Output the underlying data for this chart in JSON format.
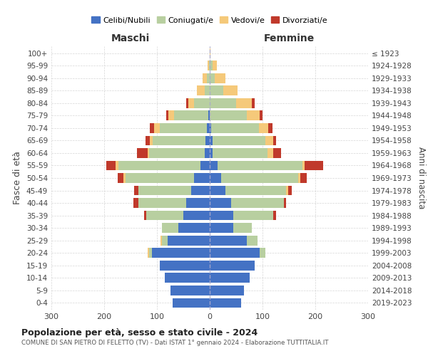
{
  "age_groups": [
    "0-4",
    "5-9",
    "10-14",
    "15-19",
    "20-24",
    "25-29",
    "30-34",
    "35-39",
    "40-44",
    "45-49",
    "50-54",
    "55-59",
    "60-64",
    "65-69",
    "70-74",
    "75-79",
    "80-84",
    "85-89",
    "90-94",
    "95-99",
    "100+"
  ],
  "birth_years": [
    "2019-2023",
    "2014-2018",
    "2009-2013",
    "2004-2008",
    "1999-2003",
    "1994-1998",
    "1989-1993",
    "1984-1988",
    "1979-1983",
    "1974-1978",
    "1969-1973",
    "1964-1968",
    "1959-1963",
    "1954-1958",
    "1949-1953",
    "1944-1948",
    "1939-1943",
    "1934-1938",
    "1929-1933",
    "1924-1928",
    "≤ 1923"
  ],
  "males": {
    "celibi": [
      70,
      75,
      85,
      95,
      110,
      80,
      60,
      50,
      45,
      35,
      30,
      18,
      10,
      8,
      5,
      3,
      0,
      0,
      0,
      0,
      0
    ],
    "coniugati": [
      0,
      0,
      0,
      0,
      5,
      10,
      30,
      70,
      90,
      100,
      130,
      155,
      105,
      100,
      90,
      65,
      30,
      10,
      5,
      2,
      0
    ],
    "vedovi": [
      0,
      0,
      0,
      0,
      3,
      3,
      0,
      0,
      0,
      0,
      3,
      5,
      3,
      5,
      10,
      10,
      10,
      15,
      8,
      2,
      0
    ],
    "divorziati": [
      0,
      0,
      0,
      0,
      0,
      0,
      0,
      5,
      10,
      8,
      12,
      18,
      20,
      8,
      8,
      5,
      5,
      0,
      0,
      0,
      0
    ]
  },
  "females": {
    "nubili": [
      60,
      65,
      75,
      85,
      95,
      70,
      45,
      45,
      40,
      30,
      22,
      15,
      5,
      5,
      3,
      0,
      0,
      0,
      0,
      0,
      0
    ],
    "coniugate": [
      0,
      0,
      0,
      0,
      10,
      20,
      35,
      75,
      100,
      115,
      145,
      160,
      105,
      100,
      90,
      70,
      50,
      25,
      10,
      5,
      0
    ],
    "vedove": [
      0,
      0,
      0,
      0,
      0,
      0,
      0,
      0,
      0,
      3,
      5,
      5,
      10,
      15,
      18,
      25,
      30,
      28,
      20,
      8,
      1
    ],
    "divorziate": [
      0,
      0,
      0,
      0,
      0,
      0,
      0,
      5,
      5,
      8,
      12,
      35,
      15,
      5,
      8,
      5,
      5,
      0,
      0,
      0,
      0
    ]
  },
  "colors": {
    "celibi": "#4472c4",
    "coniugati": "#b8cfa0",
    "vedovi": "#f5c97a",
    "divorziati": "#c0392b"
  },
  "title": "Popolazione per età, sesso e stato civile - 2024",
  "subtitle": "COMUNE DI SAN PIETRO DI FELETTO (TV) - Dati ISTAT 1° gennaio 2024 - Elaborazione TUTTITALIA.IT",
  "xlabel_left": "Maschi",
  "xlabel_right": "Femmine",
  "ylabel": "Fasce di età",
  "ylabel_right": "Anni di nascita",
  "xlim": 300,
  "plot_bg": "#ffffff",
  "legend_labels": [
    "Celibi/Nubili",
    "Coniugati/e",
    "Vedovi/e",
    "Divorziati/e"
  ]
}
